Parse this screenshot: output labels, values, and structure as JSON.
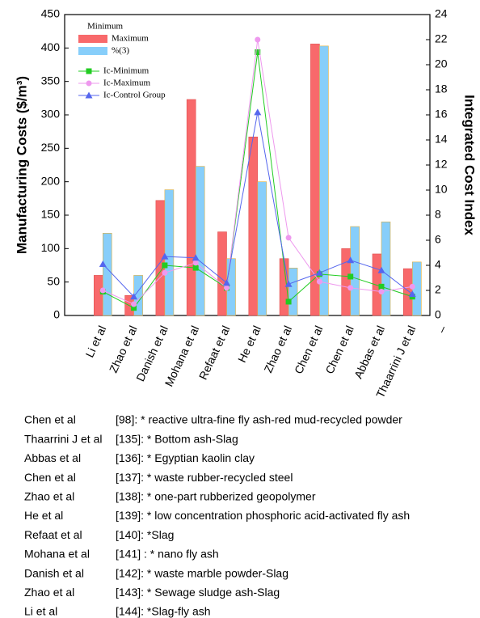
{
  "chart_data": {
    "type": "bar",
    "y_label": "Manufacturing Costs ($/m³)",
    "y2_label": "Integrated Cost Index",
    "categories": [
      "Li et al",
      "Zhao et al",
      "Danish et al",
      "Mohana et al",
      "Refaat et al",
      "He et al",
      "Zhao et al",
      "Chen et al",
      "Chen et al",
      "Abbas et al",
      "Thaarrini J et al",
      "–"
    ],
    "ylim": [
      0,
      450
    ],
    "yticks": [
      0,
      50,
      100,
      150,
      200,
      250,
      300,
      350,
      400,
      450
    ],
    "y2lim": [
      0,
      24
    ],
    "y2ticks": [
      0,
      2,
      4,
      6,
      8,
      10,
      12,
      14,
      16,
      18,
      20,
      22,
      24
    ],
    "series": [
      {
        "name": "Minimum",
        "type": "bar",
        "values": [
          null,
          null,
          null,
          null,
          null,
          null,
          null,
          null,
          null,
          null,
          null,
          null
        ]
      },
      {
        "name": "Maximum",
        "type": "bar",
        "color": "#f8696b",
        "values": [
          60,
          30,
          172,
          323,
          125,
          267,
          85,
          406,
          100,
          92,
          70,
          null
        ]
      },
      {
        "name": "%(3)",
        "type": "bar",
        "color": "#87cefa",
        "values": [
          123,
          60,
          188,
          223,
          85,
          200,
          71,
          403,
          133,
          140,
          80,
          null
        ]
      },
      {
        "name": "Ic-Minimum",
        "type": "line",
        "axis": "y2",
        "marker": "square",
        "color": "#22cc22",
        "values": [
          1.9,
          0.6,
          4.0,
          3.8,
          2.2,
          21.0,
          1.1,
          3.3,
          3.1,
          2.3,
          1.5,
          null
        ]
      },
      {
        "name": "Ic-Maximum",
        "type": "line",
        "axis": "y2",
        "marker": "circle",
        "color": "#ee99ee",
        "values": [
          2.0,
          0.9,
          3.4,
          4.2,
          2.2,
          22.0,
          6.2,
          2.7,
          2.2,
          1.9,
          2.3,
          null
        ]
      },
      {
        "name": "Ic-Control Group",
        "type": "line",
        "axis": "y2",
        "marker": "triangle",
        "color": "#5566ee",
        "values": [
          4.1,
          1.5,
          4.7,
          4.6,
          2.6,
          16.2,
          2.5,
          3.4,
          4.4,
          3.6,
          1.7,
          null
        ]
      }
    ]
  },
  "references": [
    {
      "author": "Chen et al",
      "text": "[98]: * reactive ultra-fine fly ash-red mud-recycled powder"
    },
    {
      "author": "Thaarrini J et al",
      "text": "[135]: *  Bottom ash-Slag"
    },
    {
      "author": "Abbas et al",
      "text": "[136]: *  Egyptian kaolin clay"
    },
    {
      "author": "Chen et al",
      "text": "[137]: * waste rubber-recycled steel"
    },
    {
      "author": "Zhao et al",
      "text": "[138]: * one-part rubberized geopolymer"
    },
    {
      "author": "He et al",
      "text": "[139]: * low concentration phosphoric acid-activated fly ash"
    },
    {
      "author": "Refaat et al",
      "text": "[140]: *Slag"
    },
    {
      "author": "Mohana et al",
      "text": "[141] : * nano fly ash"
    },
    {
      "author": "Danish et al",
      "text": "[142]: * waste marble powder-Slag"
    },
    {
      "author": "Zhao et al",
      "text": "[143]: * Sewage sludge ash-Slag"
    },
    {
      "author": "Li et al",
      "text": "[144]: *Slag-fly ash"
    }
  ]
}
